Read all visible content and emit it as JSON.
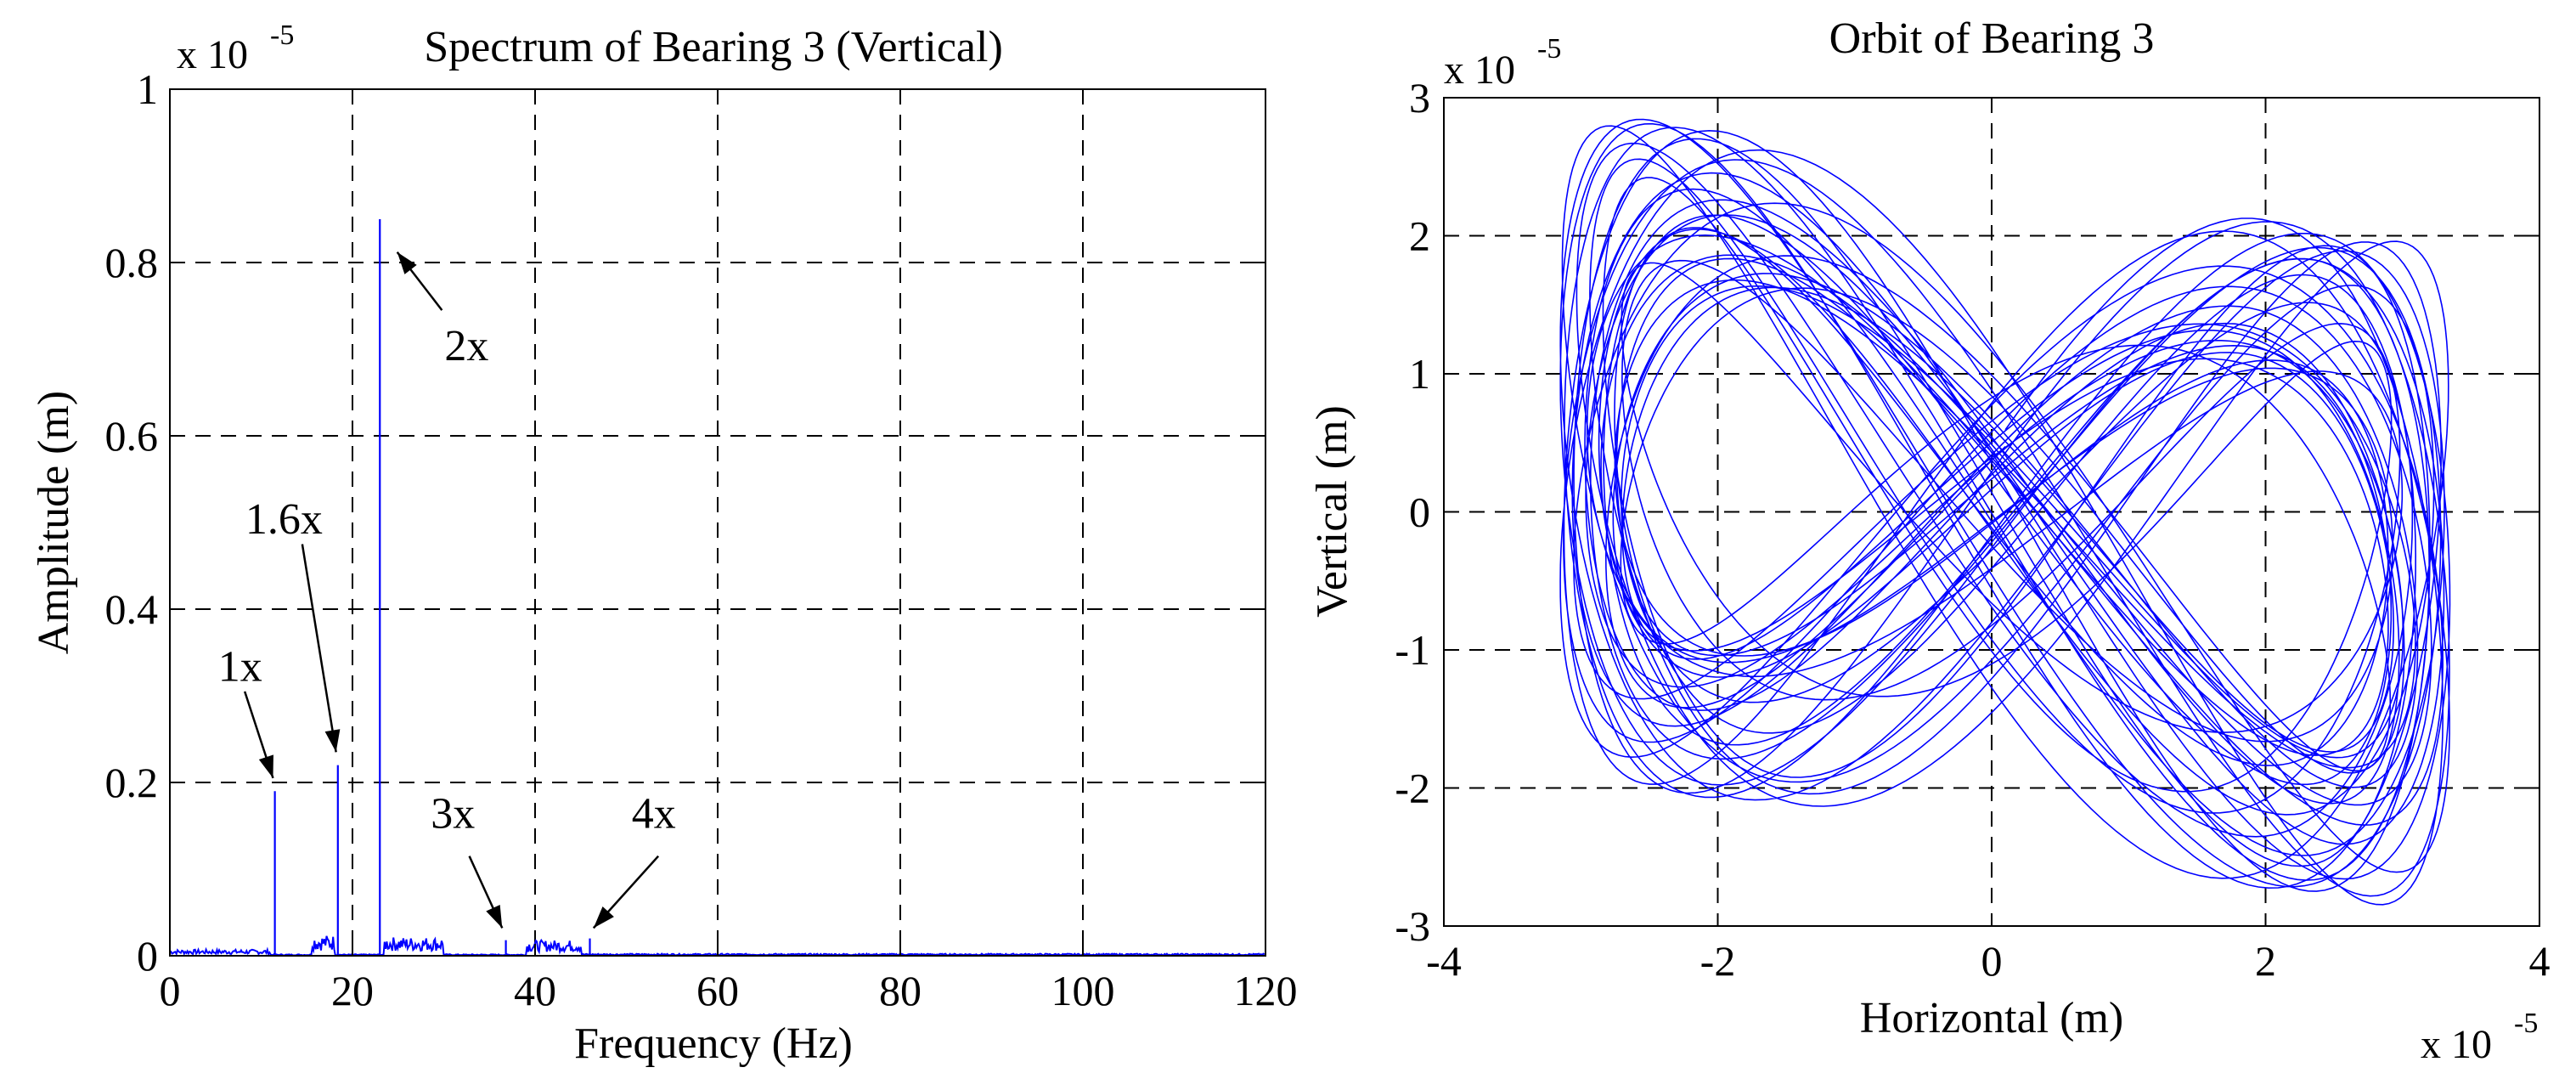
{
  "chart_data": [
    {
      "type": "line",
      "title": "Spectrum of Bearing 3 (Vertical)",
      "xlabel": "Frequency (Hz)",
      "ylabel": "Amplitude (m)",
      "y_exponent_label": "x 10",
      "y_exponent_power": "-5",
      "xlim": [
        0,
        120
      ],
      "ylim": [
        0,
        1
      ],
      "xticks": [
        0,
        20,
        40,
        60,
        80,
        100,
        120
      ],
      "yticks": [
        0,
        0.2,
        0.4,
        0.6,
        0.8,
        1
      ],
      "xtick_labels": [
        "0",
        "20",
        "40",
        "60",
        "80",
        "100",
        "120"
      ],
      "ytick_labels": [
        "0",
        "0.2",
        "0.4",
        "0.6",
        "0.8",
        "1"
      ],
      "grid": true,
      "series_color": "#0000ff",
      "peaks": [
        {
          "label": "1x",
          "x": 11.5,
          "y": 0.19
        },
        {
          "label": "1.6x",
          "x": 18.4,
          "y": 0.22
        },
        {
          "label": "2x",
          "x": 23.0,
          "y": 0.85
        },
        {
          "label": "3x",
          "x": 36.8,
          "y": 0.018
        },
        {
          "label": "4x",
          "x": 46.0,
          "y": 0.02
        }
      ],
      "noise_bands": [
        {
          "x": [
            0,
            11
          ],
          "amp": 0.006
        },
        {
          "x": [
            15.5,
            18
          ],
          "amp": 0.02
        },
        {
          "x": [
            23.5,
            30
          ],
          "amp": 0.018
        },
        {
          "x": [
            39,
            45
          ],
          "amp": 0.015
        },
        {
          "x": [
            45,
            120
          ],
          "amp": 0.002
        }
      ],
      "annotations": [
        {
          "text": "1x",
          "text_x": 7.7,
          "text_y": 0.335,
          "arrow_from": [
            8.2,
            0.305
          ],
          "arrow_to": [
            11.3,
            0.205
          ]
        },
        {
          "text": "1.6x",
          "text_x": 12.5,
          "text_y": 0.505,
          "arrow_from": [
            14.5,
            0.475
          ],
          "arrow_to": [
            18.2,
            0.235
          ]
        },
        {
          "text": "2x",
          "text_x": 32.5,
          "text_y": 0.705,
          "arrow_from": [
            29.8,
            0.745
          ],
          "arrow_to": [
            24.9,
            0.812
          ]
        },
        {
          "text": "3x",
          "text_x": 31.0,
          "text_y": 0.165,
          "arrow_from": [
            32.8,
            0.115
          ],
          "arrow_to": [
            36.4,
            0.032
          ]
        },
        {
          "text": "4x",
          "text_x": 53.0,
          "text_y": 0.165,
          "arrow_from": [
            53.5,
            0.115
          ],
          "arrow_to": [
            46.4,
            0.032
          ]
        }
      ]
    },
    {
      "type": "line",
      "title": "Orbit of Bearing 3",
      "xlabel": "Horizontal (m)",
      "ylabel": "Vertical (m)",
      "x_exponent_label": "x 10",
      "x_exponent_power": "-5",
      "y_exponent_label": "x 10",
      "y_exponent_power": "-5",
      "xlim": [
        -4,
        4
      ],
      "ylim": [
        -3,
        3
      ],
      "xticks": [
        -4,
        -2,
        0,
        2,
        4
      ],
      "yticks": [
        -3,
        -2,
        -1,
        0,
        1,
        2,
        3
      ],
      "xtick_labels": [
        "-4",
        "-2",
        "0",
        "2",
        "4"
      ],
      "ytick_labels": [
        "-3",
        "-2",
        "-1",
        "0",
        "1",
        "2",
        "3"
      ],
      "grid": true,
      "series_color": "#0000ff",
      "orbit": {
        "shape": "figure-eight",
        "x_amplitude": 3.25,
        "y_amplitude": 2.55,
        "center": [
          0.1,
          0.0
        ],
        "tilt": -0.32,
        "loops": 30
      }
    }
  ]
}
